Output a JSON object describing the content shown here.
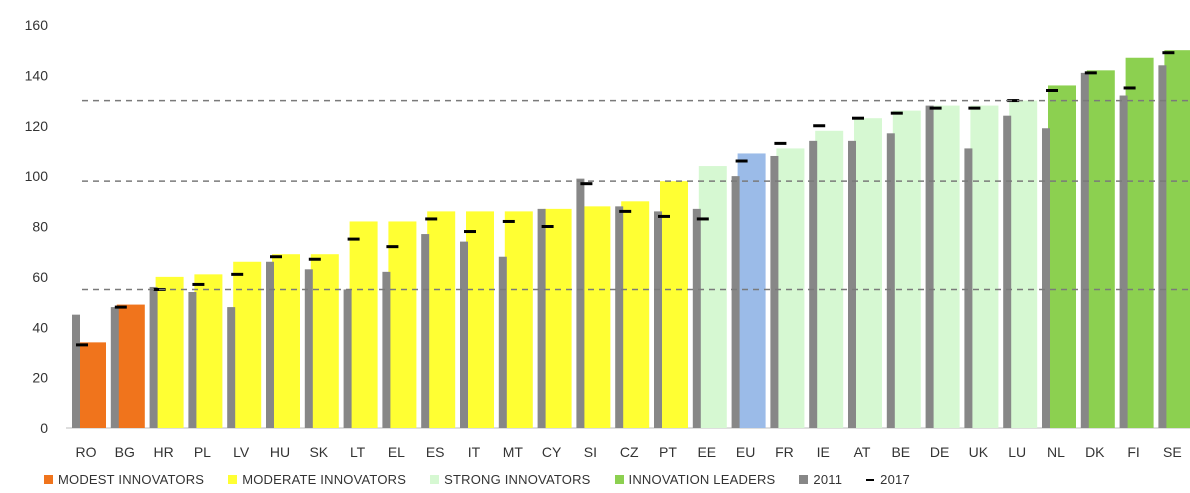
{
  "chart_data": {
    "type": "bar",
    "categories": [
      "RO",
      "BG",
      "HR",
      "PL",
      "LV",
      "HU",
      "SK",
      "LT",
      "EL",
      "ES",
      "IT",
      "MT",
      "CY",
      "SI",
      "CZ",
      "PT",
      "EE",
      "EU",
      "FR",
      "IE",
      "AT",
      "BE",
      "DE",
      "UK",
      "LU",
      "NL",
      "DK",
      "FI",
      "SE"
    ],
    "groups": [
      "modest",
      "modest",
      "moderate",
      "moderate",
      "moderate",
      "moderate",
      "moderate",
      "moderate",
      "moderate",
      "moderate",
      "moderate",
      "moderate",
      "moderate",
      "moderate",
      "moderate",
      "moderate",
      "strong",
      "eu",
      "strong",
      "strong",
      "strong",
      "strong",
      "strong",
      "strong",
      "strong",
      "leader",
      "leader",
      "leader",
      "leader"
    ],
    "series": [
      {
        "name": "2017",
        "kind": "bar",
        "values": [
          34,
          49,
          60,
          61,
          66,
          69,
          69,
          82,
          82,
          86,
          86,
          86,
          87,
          88,
          90,
          98,
          104,
          109,
          111,
          118,
          123,
          126,
          128,
          128,
          130,
          136,
          142,
          147,
          150
        ]
      },
      {
        "name": "2011",
        "kind": "thin-bar",
        "values": [
          45,
          48,
          56,
          54,
          48,
          66,
          63,
          55,
          62,
          77,
          74,
          68,
          87,
          99,
          88,
          86,
          87,
          100,
          108,
          114,
          114,
          117,
          128,
          111,
          124,
          119,
          141,
          132,
          144
        ]
      },
      {
        "name": "2017",
        "kind": "marker",
        "values": [
          33,
          48,
          55,
          57,
          61,
          68,
          67,
          75,
          72,
          83,
          78,
          82,
          80,
          97,
          86,
          84,
          83,
          106,
          113,
          120,
          123,
          125,
          127,
          127,
          130,
          134,
          141,
          135,
          149
        ]
      }
    ],
    "threshold_lines": [
      55,
      98,
      130
    ],
    "ylim": [
      0,
      160
    ],
    "yticks": [
      0,
      20,
      40,
      60,
      80,
      100,
      120,
      140,
      160
    ],
    "colors": {
      "modest": "#F0741C",
      "moderate": "#FFFF33",
      "strong": "#D6F8D2",
      "leader": "#8CD050",
      "eu": "#9BBBE8",
      "bar2011": "#878787",
      "marker": "#000000",
      "threshold": "#7a7a7a"
    },
    "legend": [
      {
        "label": "MODEST INNOVATORS",
        "color": "#F0741C",
        "kind": "swatch"
      },
      {
        "label": "MODERATE INNOVATORS",
        "color": "#FFFF33",
        "kind": "swatch"
      },
      {
        "label": "STRONG INNOVATORS",
        "color": "#D6F8D2",
        "kind": "swatch"
      },
      {
        "label": "INNOVATION LEADERS",
        "color": "#8CD050",
        "kind": "swatch"
      },
      {
        "label": "2011",
        "color": "#878787",
        "kind": "swatch"
      },
      {
        "label": "2017",
        "color": "#000000",
        "kind": "dash"
      }
    ],
    "grid": false
  }
}
